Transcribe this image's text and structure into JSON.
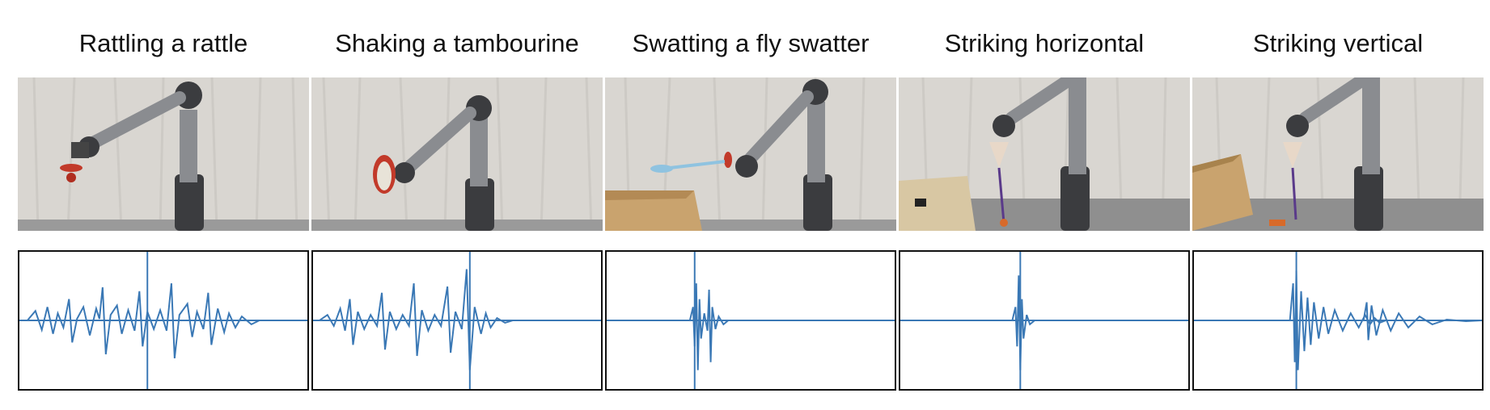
{
  "panels": [
    {
      "title": "Rattling a rattle",
      "scene": "robot-arm-holding-rattle",
      "waveform": "repeated-bursts"
    },
    {
      "title": "Shaking a tambourine",
      "scene": "robot-arm-holding-tambourine",
      "waveform": "repeated-bursts"
    },
    {
      "title": "Swatting a fly swatter",
      "scene": "robot-arm-holding-fly-swatter",
      "waveform": "single-spike"
    },
    {
      "title": "Striking horizontal",
      "scene": "robot-arm-striking-horizontal",
      "waveform": "single-spike"
    },
    {
      "title": "Striking vertical",
      "scene": "robot-arm-striking-vertical",
      "waveform": "decaying-bursts"
    }
  ],
  "colors": {
    "waveform": "#3a78b5",
    "curtain": "#d9d6d1",
    "floor": "#8f8f8f",
    "arm": "#8a8c90",
    "joint": "#3b3c3f",
    "box": "#c9a36e"
  }
}
